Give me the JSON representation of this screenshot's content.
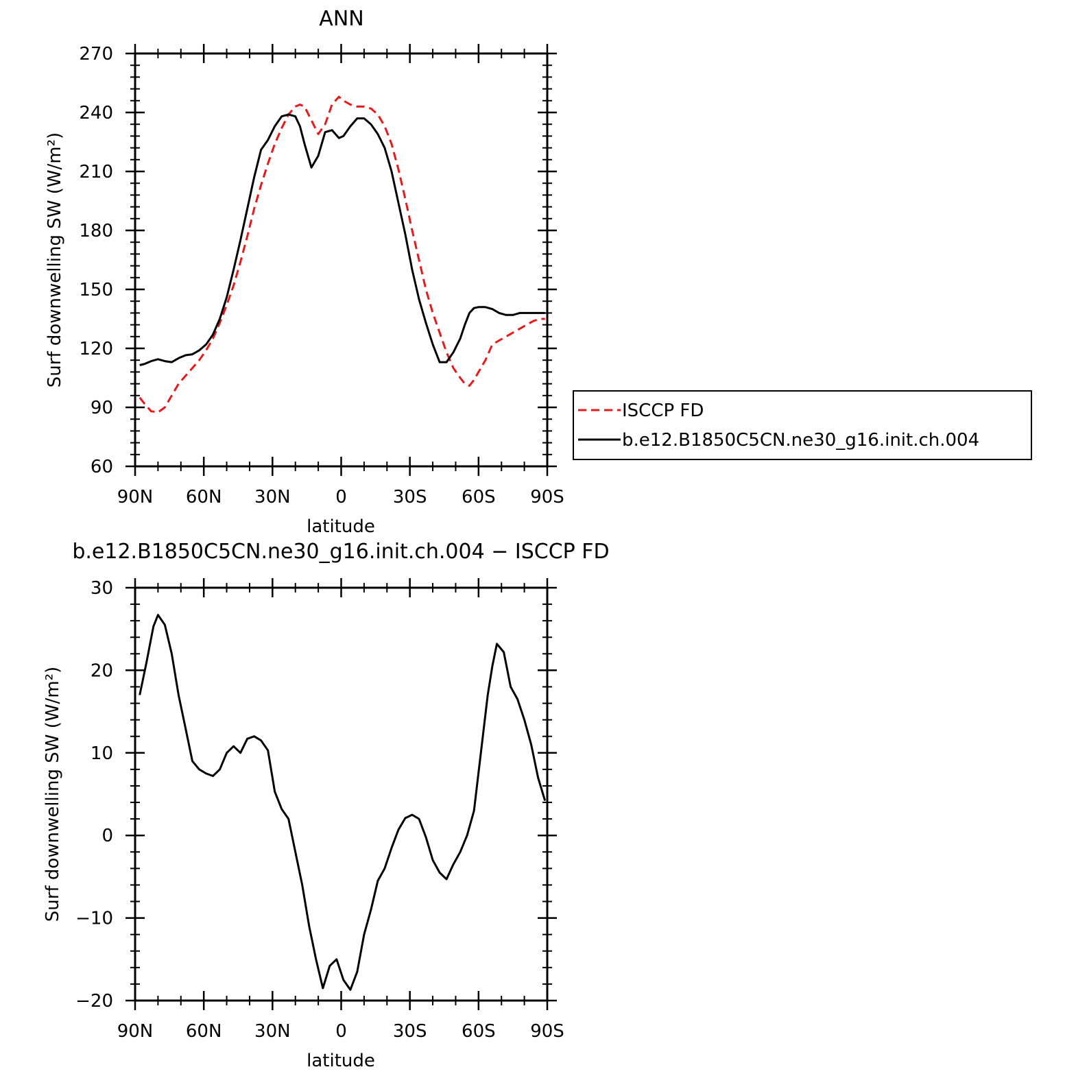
{
  "chart_data": [
    {
      "type": "line",
      "title": "ANN",
      "xlabel": "latitude",
      "ylabel": "Surf downwelling SW (W/m²)",
      "xlim": [
        90,
        -90
      ],
      "ylim": [
        60,
        270
      ],
      "xticks": [
        {
          "value": 90,
          "label": "90N"
        },
        {
          "value": 60,
          "label": "60N"
        },
        {
          "value": 30,
          "label": "30N"
        },
        {
          "value": 0,
          "label": "0"
        },
        {
          "value": -30,
          "label": "30S"
        },
        {
          "value": -60,
          "label": "60S"
        },
        {
          "value": -90,
          "label": "90S"
        }
      ],
      "yticks": [
        60,
        90,
        120,
        150,
        180,
        210,
        240,
        270
      ],
      "legend": {
        "position": "right",
        "frame": true
      },
      "series": [
        {
          "name": "ISCCP FD",
          "color": "#e8191a",
          "dash": "dashed",
          "x": [
            88,
            86,
            83,
            80,
            77,
            74,
            71,
            68,
            65,
            62,
            59,
            56,
            53,
            50,
            47,
            44,
            41,
            38,
            35,
            32,
            29,
            26,
            23,
            20,
            18,
            16,
            13,
            10,
            7,
            4,
            1,
            -1,
            -4,
            -7,
            -10,
            -13,
            -16,
            -19,
            -22,
            -25,
            -28,
            -31,
            -34,
            -37,
            -40,
            -43,
            -46,
            -49,
            -52,
            -54,
            -56,
            -58,
            -60,
            -63,
            -66,
            -69,
            -72,
            -75,
            -78,
            -81,
            -84,
            -87,
            -89
          ],
          "y": [
            95,
            92,
            88,
            87.5,
            90,
            96,
            102,
            106,
            110,
            114,
            119,
            125,
            133,
            142,
            152,
            164,
            177,
            191,
            203,
            214,
            224,
            232,
            239,
            243,
            244,
            243,
            236,
            229,
            234,
            244,
            248,
            246,
            244,
            243,
            243,
            242,
            239,
            233,
            224,
            211,
            196,
            180,
            165,
            150,
            138,
            128,
            118,
            110,
            105,
            102,
            101,
            104,
            108,
            114,
            122,
            124,
            126,
            128,
            130,
            132,
            134,
            135,
            135
          ]
        },
        {
          "name": "b.e12.B1850C5CN.ne30_g16.init.ch.004",
          "color": "#000000",
          "dash": "solid",
          "x": [
            88,
            86,
            83,
            80,
            77,
            74,
            71,
            68,
            65,
            62,
            59,
            56,
            53,
            50,
            47,
            44,
            41,
            38,
            35,
            32,
            29,
            26,
            23,
            20,
            18,
            16,
            13,
            10,
            7,
            4,
            1,
            -1,
            -4,
            -7,
            -10,
            -13,
            -16,
            -19,
            -22,
            -25,
            -28,
            -31,
            -34,
            -37,
            -40,
            -43,
            -46,
            -49,
            -52,
            -54,
            -56,
            -58,
            -60,
            -63,
            -66,
            -69,
            -72,
            -75,
            -78,
            -81,
            -84,
            -87,
            -89
          ],
          "y": [
            111.5,
            112,
            113.5,
            114.5,
            113.5,
            113,
            115,
            116.5,
            117,
            119,
            122,
            127,
            135,
            146,
            160,
            175,
            191,
            207,
            221,
            226,
            233,
            238,
            239,
            238,
            233,
            224,
            212,
            218,
            230,
            231,
            227,
            228,
            233,
            237,
            237,
            234,
            229,
            222,
            210,
            194,
            178,
            160,
            145,
            133,
            122,
            113,
            113,
            118,
            125,
            132,
            138,
            140.5,
            141,
            141,
            140,
            138,
            137,
            137,
            138,
            138,
            138,
            138,
            138
          ]
        }
      ]
    },
    {
      "type": "line",
      "title": "b.e12.B1850C5CN.ne30_g16.init.ch.004 − ISCCP FD",
      "xlabel": "latitude",
      "ylabel": "Surf downwelling SW (W/m²)",
      "xlim": [
        90,
        -90
      ],
      "ylim": [
        -20,
        30
      ],
      "xticks": [
        {
          "value": 90,
          "label": "90N"
        },
        {
          "value": 60,
          "label": "60N"
        },
        {
          "value": 30,
          "label": "30N"
        },
        {
          "value": 0,
          "label": "0"
        },
        {
          "value": -30,
          "label": "30S"
        },
        {
          "value": -60,
          "label": "60S"
        },
        {
          "value": -90,
          "label": "90S"
        }
      ],
      "yticks": [
        -20,
        -10,
        0,
        10,
        20,
        30
      ],
      "series": [
        {
          "color": "#000000",
          "dash": "solid",
          "x": [
            88,
            85,
            82,
            80,
            77,
            74,
            71,
            68,
            65,
            62,
            59,
            56,
            53,
            50,
            47,
            44,
            41,
            38,
            35,
            32,
            29,
            26,
            23,
            20,
            17,
            14,
            11,
            8,
            5,
            2,
            -1,
            -4,
            -7,
            -10,
            -13,
            -16,
            -19,
            -22,
            -25,
            -28,
            -31,
            -34,
            -37,
            -40,
            -43,
            -46,
            -49,
            -52,
            -55,
            -58,
            -61,
            -64,
            -66,
            -68,
            -71,
            -74,
            -77,
            -80,
            -83,
            -86,
            -89
          ],
          "y": [
            17,
            21,
            25.3,
            26.7,
            25.5,
            22,
            17,
            13,
            9,
            8,
            7.5,
            7.2,
            8,
            10,
            10.8,
            10,
            11.7,
            12,
            11.5,
            10.3,
            5.3,
            3.2,
            2,
            -2,
            -6,
            -11,
            -15,
            -18.5,
            -15.8,
            -15,
            -17.5,
            -18.7,
            -16.5,
            -12,
            -9,
            -5.5,
            -4,
            -1.5,
            0.7,
            2.1,
            2.5,
            2,
            -0.2,
            -3,
            -4.5,
            -5.3,
            -3.5,
            -2,
            0,
            3,
            10,
            17,
            20.5,
            23.2,
            22.2,
            18,
            16.5,
            14,
            11,
            7,
            4.2
          ]
        }
      ]
    }
  ]
}
